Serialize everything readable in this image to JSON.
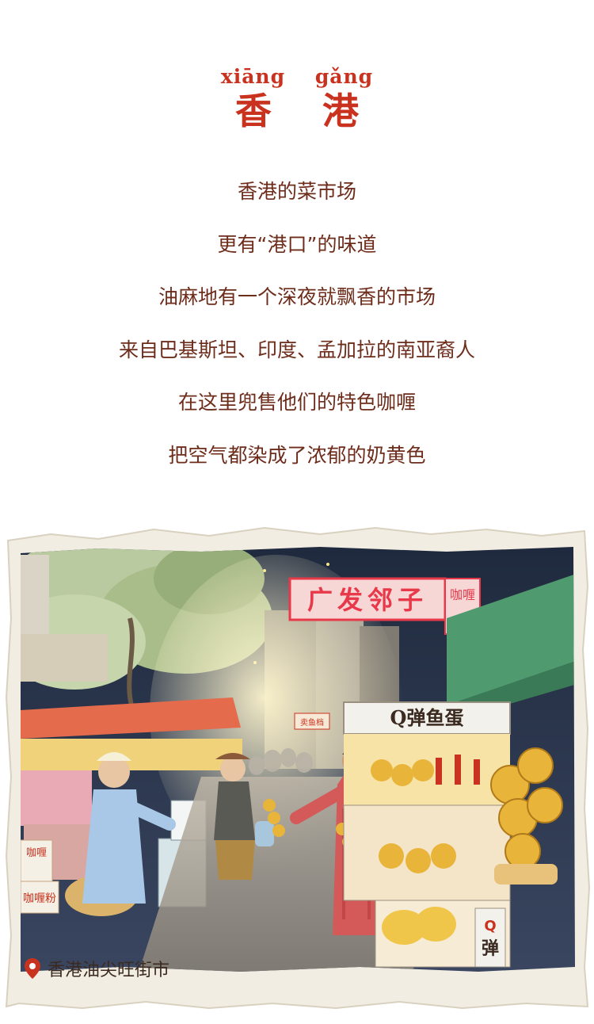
{
  "header": {
    "pinyin": [
      "xiāng",
      "gǎng"
    ],
    "title": "香 港"
  },
  "poem": {
    "lines": [
      "香港的菜市场",
      "更有“港口”的味道",
      "油麻地有一个深夜就飘香的市场",
      "来自巴基斯坦、印度、孟加拉的南亚裔人",
      "在这里兜售他们的特色咖喱",
      "把空气都染成了浓郁的奶黄色"
    ]
  },
  "illustration": {
    "signs": {
      "main_sign": "广发邻子",
      "curry_sign": "咖喱",
      "fishball_sign": "Q弹鱼蛋",
      "small_sign": "卖鱼档",
      "bottom_sign_q": "Q",
      "bottom_sign_char": "弹",
      "left_box_1": "咖喱",
      "left_box_2": "咖喱粉"
    },
    "location_label": "香港油尖旺街市"
  },
  "colors": {
    "accent_red": "#c8321e",
    "poem_brown": "#6e2c1b",
    "neon_red": "#e8394a",
    "curry_yellow": "#e9b43a"
  },
  "icons": {
    "location": "map-pin-icon"
  }
}
